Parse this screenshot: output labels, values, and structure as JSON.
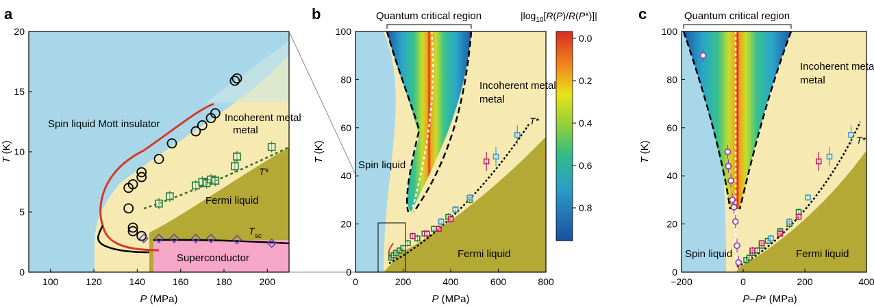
{
  "chart_data": [
    {
      "panel": "a",
      "type": "scatter",
      "xlabel": "P (MPa)",
      "ylabel": "T (K)",
      "xlim": [
        90,
        210
      ],
      "ylim": [
        0,
        20
      ],
      "xticks": [
        100,
        120,
        140,
        160,
        180,
        200
      ],
      "yticks": [
        0,
        5,
        10,
        15,
        20
      ],
      "regions": [
        "Spin liquid Mott insulator",
        "Incoherent metal",
        "Fermi liquid",
        "Superconductor"
      ],
      "labels": {
        "tstar": "T*",
        "tsc": "T",
        "tsc_sub": "sc"
      },
      "series": [
        {
          "kind": "circle",
          "color": "#000000",
          "points": [
            [
              136,
              7.0
            ],
            [
              136,
              5.3
            ],
            [
              138,
              7.3
            ],
            [
              138,
              3.7
            ],
            [
              138,
              3.4
            ],
            [
              142,
              8.3
            ],
            [
              142,
              7.9
            ],
            [
              142,
              3.0
            ],
            [
              150,
              9.4
            ],
            [
              156,
              10.7
            ],
            [
              167,
              11.7
            ],
            [
              170,
              12.2
            ],
            [
              174,
              12.8
            ],
            [
              176,
              13.2
            ],
            [
              185,
              15.9
            ],
            [
              186,
              16.1
            ]
          ]
        },
        {
          "kind": "square",
          "color": "#1f7a2e",
          "points": [
            [
              150,
              5.7
            ],
            [
              155,
              6.3
            ],
            [
              167,
              7.2
            ],
            [
              170,
              7.5
            ],
            [
              172,
              7.4
            ],
            [
              174,
              7.7
            ],
            [
              176,
              7.6
            ],
            [
              185,
              8.8
            ],
            [
              186,
              9.6
            ],
            [
              202,
              10.4
            ]
          ]
        },
        {
          "kind": "diamond",
          "color": "#5a4ab0",
          "points": [
            [
              143,
              2.8
            ],
            [
              150,
              2.8
            ],
            [
              157,
              2.8
            ],
            [
              167,
              2.8
            ],
            [
              174,
              2.8
            ],
            [
              186,
              2.7
            ],
            [
              202,
              2.4
            ]
          ]
        }
      ]
    },
    {
      "panel": "b",
      "type": "heatmap",
      "xlabel": "P (MPa)",
      "ylabel": "T (K)",
      "xlim": [
        0,
        800
      ],
      "ylim": [
        0,
        100
      ],
      "xticks": [
        0,
        200,
        400,
        600,
        800
      ],
      "yticks": [
        0,
        20,
        40,
        60,
        80,
        100
      ],
      "top_label": "Quantum critical region",
      "regions": [
        "Spin liquid",
        "Incoherent metal",
        "Fermi liquid"
      ],
      "labels": {
        "tstar": "T*"
      },
      "colorbar": {
        "label": "|log10[R(P)/R(P*)]|",
        "ticks": [
          "0.0",
          "0.2",
          "0.4",
          "0.6",
          "0.8"
        ]
      },
      "series": [
        {
          "kind": "square",
          "color": "#1f7a2e",
          "points": [
            [
              150,
              6
            ],
            [
              160,
              7
            ],
            [
              170,
              8
            ],
            [
              185,
              9
            ],
            [
              200,
              10
            ],
            [
              220,
              12
            ],
            [
              260,
              14
            ],
            [
              290,
              16
            ],
            [
              330,
              18
            ],
            [
              360,
              21
            ],
            [
              390,
              23
            ],
            [
              420,
              26
            ],
            [
              480,
              30
            ]
          ]
        },
        {
          "kind": "square",
          "color": "#c2185b",
          "points": [
            [
              240,
              15
            ],
            [
              300,
              16
            ],
            [
              350,
              18
            ],
            [
              400,
              22
            ],
            [
              550,
              46
            ]
          ]
        },
        {
          "kind": "square",
          "color": "#3399cc",
          "points": [
            [
              360,
              21
            ],
            [
              420,
              26
            ],
            [
              480,
              31
            ],
            [
              590,
              48
            ],
            [
              680,
              57
            ]
          ]
        }
      ]
    },
    {
      "panel": "c",
      "type": "heatmap",
      "xlabel": "P–P* (MPa)",
      "ylabel": "T (K)",
      "xlim": [
        -200,
        400
      ],
      "ylim": [
        0,
        100
      ],
      "xticks": [
        -200,
        0,
        200,
        400
      ],
      "yticks": [
        0,
        20,
        40,
        60,
        80,
        100
      ],
      "top_label": "Quantum critical region",
      "regions": [
        "Spin liquid",
        "Incoherent metal",
        "Fermi liquid"
      ],
      "labels": {
        "tstar": "T*"
      },
      "series": [
        {
          "kind": "circle",
          "color": "#8e44ad",
          "points": [
            [
              -130,
              90
            ],
            [
              -50,
              50
            ],
            [
              -48,
              44
            ],
            [
              -40,
              38
            ],
            [
              -35,
              30
            ],
            [
              -30,
              27
            ],
            [
              -25,
              21
            ],
            [
              -20,
              11
            ],
            [
              -15,
              4
            ]
          ]
        },
        {
          "kind": "square",
          "color": "#1f7a2e",
          "points": [
            [
              10,
              5
            ],
            [
              20,
              6
            ],
            [
              30,
              8
            ],
            [
              45,
              9
            ],
            [
              60,
              11
            ],
            [
              80,
              13
            ],
            [
              120,
              17
            ],
            [
              150,
              20
            ],
            [
              180,
              25
            ]
          ]
        },
        {
          "kind": "square",
          "color": "#c2185b",
          "points": [
            [
              30,
              9
            ],
            [
              60,
              12
            ],
            [
              120,
              16
            ],
            [
              180,
              23
            ],
            [
              245,
              46
            ]
          ]
        },
        {
          "kind": "square",
          "color": "#3399cc",
          "points": [
            [
              90,
              14
            ],
            [
              150,
              21
            ],
            [
              210,
              31
            ],
            [
              280,
              48
            ],
            [
              350,
              57
            ]
          ]
        }
      ]
    }
  ],
  "panel_labels": [
    "a",
    "b",
    "c"
  ]
}
